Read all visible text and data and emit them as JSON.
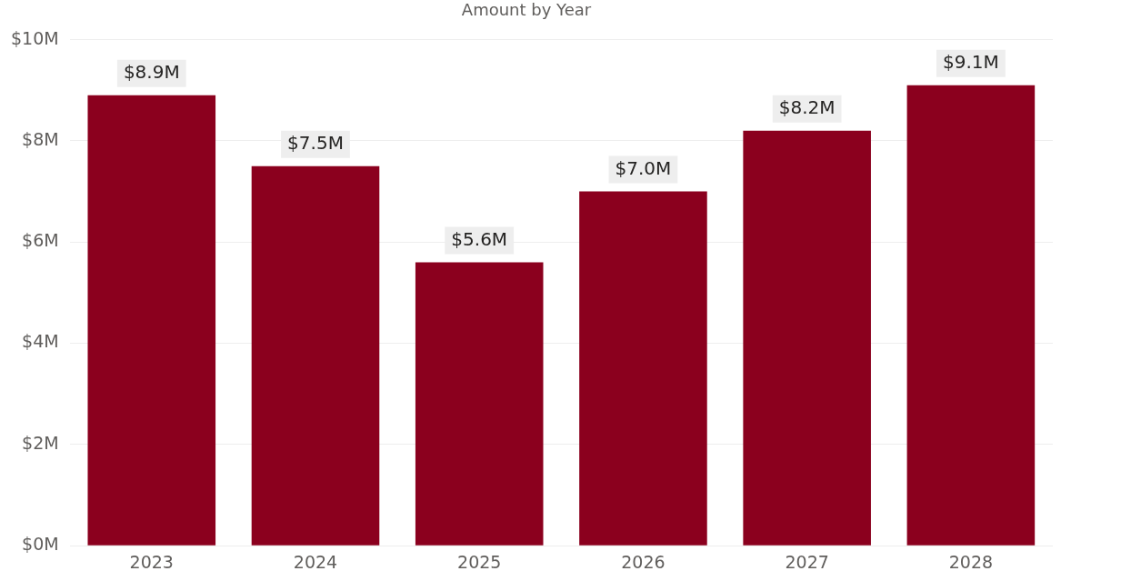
{
  "chart_data": {
    "type": "bar",
    "title": "Amount by Year",
    "categories": [
      "2023",
      "2024",
      "2025",
      "2026",
      "2027",
      "2028"
    ],
    "values": [
      8.9,
      7.5,
      5.6,
      7.0,
      8.2,
      9.1
    ],
    "value_labels": [
      "$8.9M",
      "$7.5M",
      "$5.6M",
      "$7.0M",
      "$8.2M",
      "$9.1M"
    ],
    "color": "#8b001e",
    "ylim": [
      0,
      10
    ],
    "yticks": [
      {
        "value": 0,
        "label": "$0M"
      },
      {
        "value": 2,
        "label": "$2M"
      },
      {
        "value": 4,
        "label": "$4M"
      },
      {
        "value": 6,
        "label": "$6M"
      },
      {
        "value": 8,
        "label": "$8M"
      },
      {
        "value": 10,
        "label": "$10M"
      }
    ],
    "grid": "y",
    "legend": false
  }
}
